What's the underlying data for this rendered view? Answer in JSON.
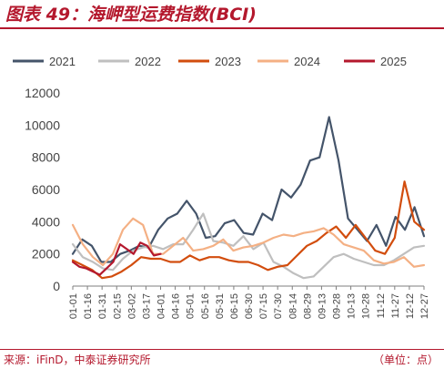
{
  "header": {
    "title": "图表 49：海岬型运费指数(BCI)"
  },
  "footer": {
    "source": "来源：iFinD，中泰证券研究所",
    "unit": "（单位：点）"
  },
  "chart_data": {
    "type": "line",
    "title": "图表 49：海岬型运费指数(BCI)",
    "xlabel": "",
    "ylabel": "",
    "ylim": [
      0,
      12000
    ],
    "yticks": [
      0,
      2000,
      4000,
      6000,
      8000,
      10000,
      12000
    ],
    "x_tick_labels": [
      "01-01",
      "01-16",
      "01-31",
      "02-15",
      "03-02",
      "03-17",
      "04-01",
      "04-16",
      "05-01",
      "05-16",
      "05-31",
      "06-15",
      "06-30",
      "07-15",
      "07-30",
      "08-14",
      "08-29",
      "09-13",
      "09-28",
      "10-13",
      "10-28",
      "11-12",
      "11-27",
      "12-12",
      "12-27"
    ],
    "legend_position": "top",
    "grid": false,
    "series": [
      {
        "name": "2021",
        "color": "#44546a",
        "values": [
          2000,
          2900,
          2500,
          1500,
          1500,
          2000,
          2200,
          2500,
          2400,
          3500,
          4200,
          4500,
          5300,
          4500,
          3000,
          3100,
          3900,
          4100,
          3300,
          3200,
          4500,
          4100,
          6000,
          5500,
          6300,
          7800,
          8000,
          10500,
          7800,
          4200,
          3500,
          2800,
          3800,
          2500,
          4300,
          3500,
          4900,
          3100
        ]
      },
      {
        "name": "2022",
        "color": "#bfbfbf",
        "values": [
          2600,
          1800,
          1500,
          1100,
          1000,
          1700,
          2200,
          2400,
          2500,
          2300,
          2600,
          2600,
          3500,
          4500,
          2800,
          2700,
          2500,
          3100,
          2300,
          2700,
          1500,
          1200,
          800,
          500,
          600,
          1200,
          1800,
          2000,
          1700,
          1500,
          1300,
          1300,
          1600,
          2000,
          2400,
          2500
        ]
      },
      {
        "name": "2023",
        "color": "#d24d0e",
        "values": [
          1600,
          1300,
          1000,
          500,
          600,
          900,
          1300,
          1800,
          1700,
          1700,
          1500,
          1500,
          1900,
          1600,
          1800,
          1800,
          1600,
          1500,
          1500,
          1300,
          1000,
          1200,
          1300,
          1900,
          2500,
          2800,
          3300,
          3700,
          3000,
          3800,
          3000,
          2200,
          2000,
          3000,
          6500,
          4000,
          3500
        ]
      },
      {
        "name": "2024",
        "color": "#f4b084",
        "values": [
          3800,
          2600,
          1800,
          1300,
          2000,
          3500,
          4200,
          3800,
          2000,
          2000,
          2500,
          3000,
          2200,
          2300,
          2500,
          2900,
          2200,
          2400,
          2500,
          2700,
          3000,
          3200,
          3100,
          3300,
          3400,
          3600,
          3200,
          2600,
          2400,
          2200,
          1600,
          1400,
          1500,
          1800,
          1200,
          1300
        ]
      },
      {
        "name": "2025",
        "color": "#b4182d",
        "values": [
          1500,
          1200,
          1100,
          900,
          700,
          1100,
          1500,
          2600,
          2300,
          2000,
          2700,
          2500,
          1900,
          2000
        ]
      }
    ]
  }
}
